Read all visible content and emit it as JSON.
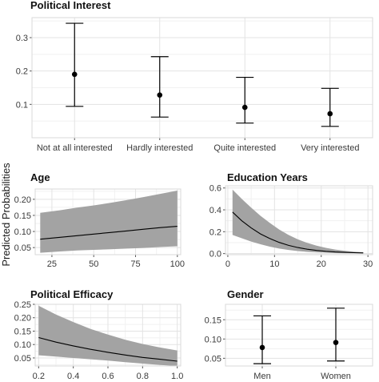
{
  "figure": {
    "ylabel": "Predicted Probabilities"
  },
  "chart_data": [
    {
      "id": "political_interest",
      "type": "errorbar",
      "title": "Political Interest",
      "xlabel": "",
      "ylabel": "",
      "categories": [
        "Not at all interested",
        "Hardly interested",
        "Quite interested",
        "Very interested"
      ],
      "values": [
        0.19,
        0.128,
        0.091,
        0.072
      ],
      "lower": [
        0.094,
        0.062,
        0.044,
        0.034
      ],
      "upper": [
        0.343,
        0.243,
        0.181,
        0.148
      ],
      "ylim": [
        0.0,
        0.36
      ],
      "yticks": [
        0.1,
        0.2,
        0.3
      ],
      "ytick_labels": [
        "0.1",
        "0.2",
        "0.3"
      ],
      "grid": true
    },
    {
      "id": "age",
      "type": "line",
      "title": "Age",
      "xlabel": "",
      "ylabel": "",
      "x": [
        18,
        30,
        40,
        50,
        60,
        70,
        80,
        90,
        100
      ],
      "y": [
        0.076,
        0.082,
        0.087,
        0.092,
        0.097,
        0.102,
        0.107,
        0.112,
        0.116
      ],
      "lower": [
        0.034,
        0.038,
        0.041,
        0.043,
        0.045,
        0.047,
        0.049,
        0.052,
        0.054
      ],
      "upper": [
        0.158,
        0.166,
        0.174,
        0.181,
        0.189,
        0.198,
        0.207,
        0.217,
        0.227
      ],
      "xlim": [
        15,
        102
      ],
      "ylim": [
        0.028,
        0.232
      ],
      "xticks": [
        25,
        50,
        75,
        100
      ],
      "xtick_labels": [
        "25",
        "50",
        "75",
        "100"
      ],
      "yticks": [
        0.05,
        0.1,
        0.15,
        0.2
      ],
      "ytick_labels": [
        "0.05",
        "0.10",
        "0.15",
        "0.20"
      ],
      "grid": true
    },
    {
      "id": "education_years",
      "type": "line",
      "title": "Education Years",
      "xlabel": "",
      "ylabel": "",
      "x": [
        1,
        3,
        5,
        7,
        9,
        11,
        13,
        15,
        17,
        19,
        21,
        23,
        25,
        27,
        29
      ],
      "y": [
        0.38,
        0.3,
        0.235,
        0.18,
        0.137,
        0.102,
        0.075,
        0.055,
        0.04,
        0.029,
        0.021,
        0.015,
        0.011,
        0.008,
        0.006
      ],
      "lower": [
        0.17,
        0.14,
        0.11,
        0.085,
        0.063,
        0.046,
        0.033,
        0.023,
        0.016,
        0.011,
        0.008,
        0.005,
        0.004,
        0.003,
        0.002
      ],
      "upper": [
        0.585,
        0.5,
        0.42,
        0.345,
        0.28,
        0.22,
        0.17,
        0.13,
        0.098,
        0.072,
        0.052,
        0.037,
        0.026,
        0.018,
        0.012
      ],
      "xlim": [
        -0.5,
        31
      ],
      "ylim": [
        -0.01,
        0.62
      ],
      "xticks": [
        0,
        10,
        20,
        30
      ],
      "xtick_labels": [
        "0",
        "10",
        "20",
        "30"
      ],
      "yticks": [
        0.0,
        0.2,
        0.4,
        0.6
      ],
      "ytick_labels": [
        "0.0",
        "0.2",
        "0.4",
        "0.6"
      ],
      "grid": true
    },
    {
      "id": "political_efficacy",
      "type": "line",
      "title": "Political Efficacy",
      "xlabel": "",
      "ylabel": "",
      "x": [
        0.2,
        0.3,
        0.4,
        0.5,
        0.6,
        0.7,
        0.8,
        0.9,
        1.0
      ],
      "y": [
        0.126,
        0.109,
        0.095,
        0.082,
        0.071,
        0.061,
        0.052,
        0.045,
        0.038
      ],
      "lower": [
        0.06,
        0.055,
        0.05,
        0.045,
        0.04,
        0.034,
        0.029,
        0.024,
        0.02
      ],
      "upper": [
        0.245,
        0.212,
        0.184,
        0.158,
        0.137,
        0.118,
        0.102,
        0.089,
        0.078
      ],
      "xlim": [
        0.18,
        1.02
      ],
      "ylim": [
        0.02,
        0.25
      ],
      "xticks": [
        0.2,
        0.4,
        0.6,
        0.8,
        1.0
      ],
      "xtick_labels": [
        "0.2",
        "0.4",
        "0.6",
        "0.8",
        "1.0"
      ],
      "yticks": [
        0.05,
        0.1,
        0.15,
        0.2,
        0.25
      ],
      "ytick_labels": [
        "0.05",
        "0.10",
        "0.15",
        "0.20",
        "0.25"
      ],
      "grid": true
    },
    {
      "id": "gender",
      "type": "errorbar",
      "title": "Gender",
      "xlabel": "",
      "ylabel": "",
      "categories": [
        "Men",
        "Women"
      ],
      "values": [
        0.078,
        0.091
      ],
      "lower": [
        0.036,
        0.043
      ],
      "upper": [
        0.16,
        0.18
      ],
      "ylim": [
        0.03,
        0.19
      ],
      "yticks": [
        0.05,
        0.1,
        0.15
      ],
      "ytick_labels": [
        "0.05",
        "0.10",
        "0.15"
      ],
      "grid": true
    }
  ]
}
